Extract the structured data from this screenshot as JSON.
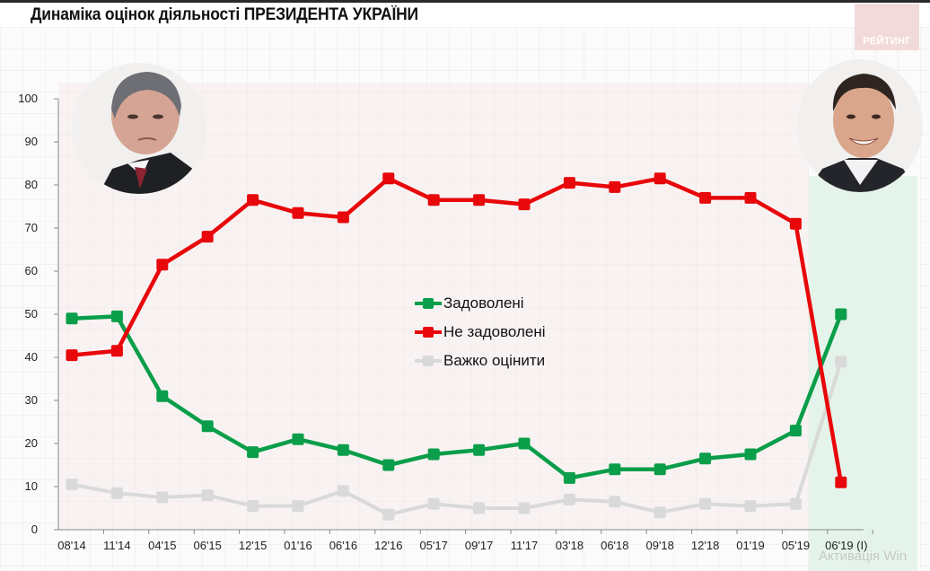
{
  "title": "Динаміка оцінок діяльності ПРЕЗИДЕНТА УКРАЇНИ",
  "brand": "РЕЙТИНГ",
  "watermark": "Активація Win",
  "portraits": [
    {
      "name": "left-portrait",
      "position": "left"
    },
    {
      "name": "right-portrait",
      "position": "right"
    }
  ],
  "colors": {
    "satisfied": "#0a9e4a",
    "not_satisfied": "#e8070a",
    "hard_to_say": "#d9d9d9",
    "highlight_zone": "#e4f4ea"
  },
  "legend": [
    {
      "label": "Задоволені",
      "color": "#0a9e4a"
    },
    {
      "label": "Не задоволені",
      "color": "#e8070a"
    },
    {
      "label": "Важко оцінити",
      "color": "#d9d9d9"
    }
  ],
  "y_ticks": [
    "0",
    "10",
    "20",
    "30",
    "40",
    "50",
    "60",
    "70",
    "80",
    "90",
    "100"
  ],
  "x_ticks": [
    "08'14",
    "11'14",
    "04'15",
    "06'15",
    "12'15",
    "01'16",
    "06'16",
    "12'16",
    "05'17",
    "09'17",
    "11'17",
    "03'18",
    "06'18",
    "09'18",
    "12'18",
    "01'19",
    "05'19",
    "06'19 (I)"
  ],
  "chart_data": {
    "type": "line",
    "title": "Динаміка оцінок діяльності ПРЕЗИДЕНТА УКРАЇНИ",
    "xlabel": "",
    "ylabel": "",
    "ylim": [
      0,
      100
    ],
    "grid": false,
    "legend_position": "center",
    "categories": [
      "08'14",
      "11'14",
      "04'15",
      "06'15",
      "12'15",
      "01'16",
      "06'16",
      "12'16",
      "05'17",
      "09'17",
      "11'17",
      "03'18",
      "06'18",
      "09'18",
      "12'18",
      "01'19",
      "05'19",
      "06'19 (I)"
    ],
    "series": [
      {
        "name": "Задоволені",
        "color": "#0a9e4a",
        "values": [
          49,
          49.5,
          31,
          24,
          18,
          21,
          18.5,
          15,
          17.5,
          18.5,
          20,
          12,
          14,
          14,
          16.5,
          17.5,
          23,
          50
        ]
      },
      {
        "name": "Не задоволені",
        "color": "#e8070a",
        "values": [
          40.5,
          41.5,
          61.5,
          68,
          76.5,
          73.5,
          72.5,
          81.5,
          76.5,
          76.5,
          75.5,
          80.5,
          79.5,
          81.5,
          77,
          77,
          71,
          11
        ]
      },
      {
        "name": "Важко оцінити",
        "color": "#d9d9d9",
        "values": [
          10.5,
          8.5,
          7.5,
          8,
          5.5,
          5.5,
          9,
          3.5,
          6,
          5,
          5,
          7,
          6.5,
          4,
          6,
          5.5,
          6,
          39
        ]
      }
    ],
    "annotations": [
      "highlighted period 06'19 (I)"
    ]
  }
}
